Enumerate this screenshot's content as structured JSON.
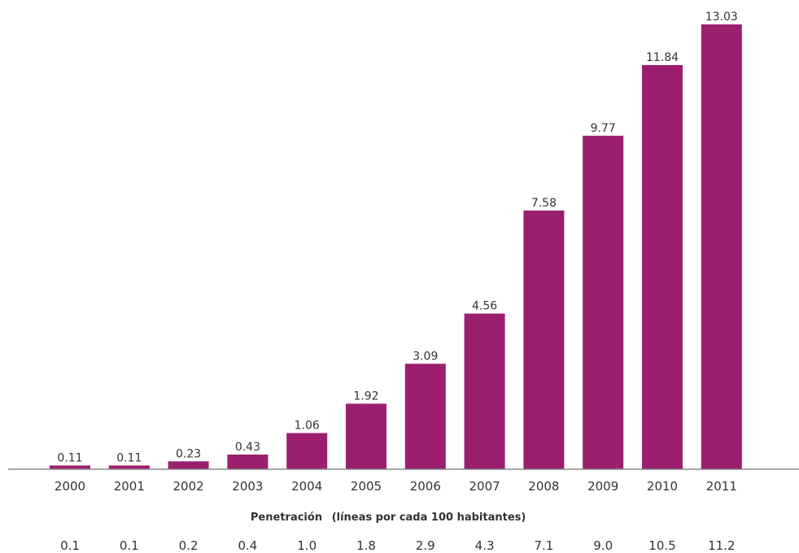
{
  "chart_data": {
    "type": "bar",
    "categories": [
      "2000",
      "2001",
      "2002",
      "2003",
      "2004",
      "2005",
      "2006",
      "2007",
      "2008",
      "2009",
      "2010",
      "2011"
    ],
    "values": [
      0.11,
      0.11,
      0.23,
      0.43,
      1.06,
      1.92,
      3.09,
      4.56,
      7.58,
      9.77,
      11.84,
      13.03
    ],
    "value_labels": [
      "0.11",
      "0.11",
      "0.23",
      "0.43",
      "1.06",
      "1.92",
      "3.09",
      "4.56",
      "7.58",
      "9.77",
      "11.84",
      "13.03"
    ],
    "ylim": [
      0,
      13.03
    ],
    "grid": false,
    "bar_color": "#9b1f6e",
    "axis_color": "#888888",
    "penetration": {
      "title": "Penetración",
      "subtitle": "(líneas por cada 100 habitantes)",
      "values": [
        "0.1",
        "0.1",
        "0.2",
        "0.4",
        "1.0",
        "1.8",
        "2.9",
        "4.3",
        "7.1",
        "9.0",
        "10.5",
        "11.2"
      ]
    }
  }
}
